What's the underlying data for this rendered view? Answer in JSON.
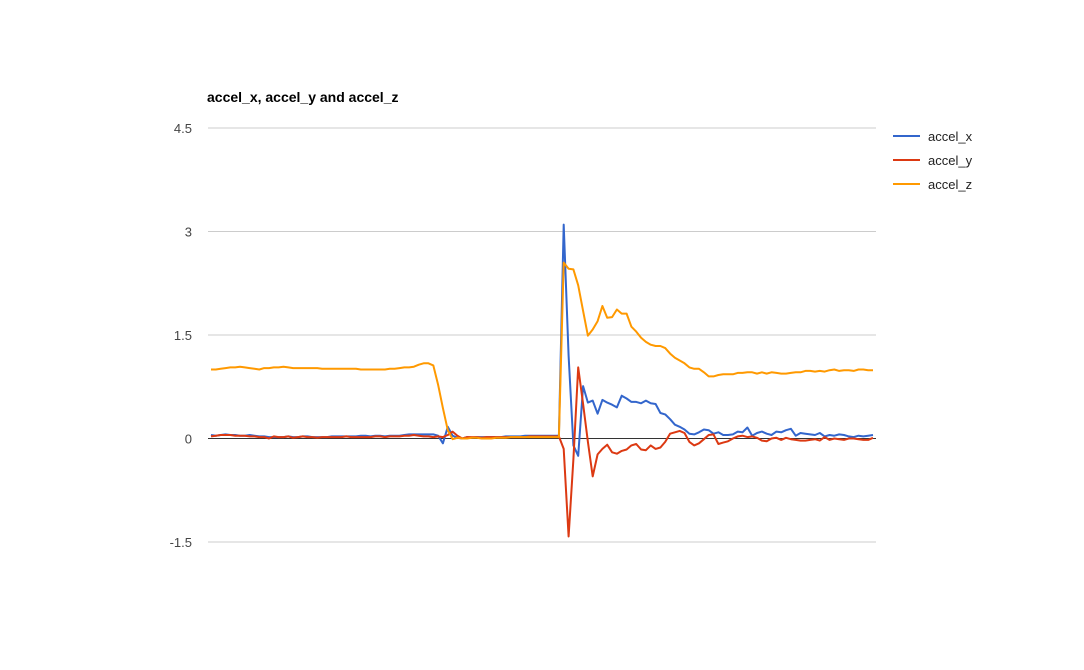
{
  "chart_data": {
    "type": "line",
    "title": "accel_x, accel_y and accel_z",
    "xlabel": "",
    "ylabel": "",
    "ylim": [
      -1.5,
      4.5
    ],
    "y_ticks": [
      "4.5",
      "3",
      "1.5",
      "0",
      "-1.5"
    ],
    "y_tick_values": [
      4.5,
      3,
      1.5,
      0,
      -1.5
    ],
    "grid": true,
    "legend_position": "right",
    "x": [
      0,
      1,
      2,
      3,
      4,
      5,
      6,
      7,
      8,
      9,
      10,
      11,
      12,
      13,
      14,
      15,
      16,
      17,
      18,
      19,
      20,
      21,
      22,
      23,
      24,
      25,
      26,
      27,
      28,
      29,
      30,
      31,
      32,
      33,
      34,
      35,
      36,
      37,
      38,
      39,
      40,
      41,
      42,
      43,
      44,
      45,
      46,
      47,
      48,
      49,
      50,
      51,
      52,
      53,
      54,
      55,
      56,
      57,
      58,
      59,
      60,
      61,
      62,
      63,
      64,
      65,
      66,
      67,
      68,
      69,
      70,
      71,
      72,
      73,
      74,
      75,
      76,
      77,
      78,
      79,
      80,
      81,
      82,
      83,
      84,
      85,
      86,
      87,
      88,
      89,
      90,
      91,
      92,
      93,
      94,
      95,
      96,
      97,
      98,
      99,
      100,
      101,
      102,
      103,
      104,
      105,
      106,
      107,
      108,
      109,
      110,
      111,
      112,
      113,
      114,
      115,
      116,
      117,
      118,
      119,
      120,
      121,
      122,
      123,
      124,
      125,
      126,
      127,
      128,
      129,
      130,
      131,
      132,
      133,
      134,
      135,
      136,
      137
    ],
    "series": [
      {
        "name": "accel_x",
        "color": "#3366cc",
        "values": [
          0.05,
          0.04,
          0.05,
          0.06,
          0.05,
          0.05,
          0.04,
          0.04,
          0.05,
          0.04,
          0.03,
          0.03,
          0.02,
          0.02,
          0.02,
          0.02,
          0.03,
          0.02,
          0.02,
          0.03,
          0.03,
          0.02,
          0.02,
          0.02,
          0.02,
          0.03,
          0.03,
          0.03,
          0.03,
          0.03,
          0.03,
          0.04,
          0.04,
          0.03,
          0.04,
          0.04,
          0.03,
          0.04,
          0.04,
          0.04,
          0.05,
          0.06,
          0.06,
          0.06,
          0.06,
          0.06,
          0.06,
          0.04,
          -0.07,
          0.17,
          0.04,
          0.01,
          0.0,
          0.02,
          0.01,
          0.02,
          0.02,
          0.02,
          0.02,
          0.02,
          0.02,
          0.03,
          0.03,
          0.03,
          0.03,
          0.04,
          0.04,
          0.04,
          0.04,
          0.04,
          0.04,
          0.04,
          0.04,
          3.1,
          1.2,
          -0.1,
          -0.25,
          0.76,
          0.52,
          0.55,
          0.36,
          0.56,
          0.52,
          0.49,
          0.45,
          0.62,
          0.58,
          0.53,
          0.53,
          0.51,
          0.55,
          0.51,
          0.5,
          0.37,
          0.35,
          0.28,
          0.2,
          0.17,
          0.13,
          0.07,
          0.06,
          0.09,
          0.13,
          0.12,
          0.07,
          0.09,
          0.05,
          0.05,
          0.06,
          0.1,
          0.09,
          0.16,
          0.04,
          0.08,
          0.1,
          0.07,
          0.05,
          0.1,
          0.09,
          0.12,
          0.14,
          0.04,
          0.08,
          0.07,
          0.06,
          0.05,
          0.08,
          0.03,
          0.05,
          0.04,
          0.06,
          0.05,
          0.03,
          0.02,
          0.04,
          0.03,
          0.04,
          0.05
        ]
      },
      {
        "name": "accel_y",
        "color": "#dc3912",
        "values": [
          0.03,
          0.04,
          0.05,
          0.05,
          0.05,
          0.04,
          0.04,
          0.04,
          0.03,
          0.03,
          0.02,
          0.02,
          0.0,
          0.03,
          0.02,
          0.02,
          0.03,
          0.01,
          0.02,
          0.03,
          0.02,
          0.02,
          0.01,
          0.02,
          0.02,
          0.02,
          0.02,
          0.02,
          0.03,
          0.02,
          0.02,
          0.02,
          0.02,
          0.02,
          0.03,
          0.03,
          0.02,
          0.03,
          0.03,
          0.03,
          0.04,
          0.04,
          0.05,
          0.04,
          0.03,
          0.03,
          0.02,
          0.03,
          0.02,
          0.05,
          0.1,
          0.04,
          0.0,
          0.02,
          0.02,
          0.02,
          0.01,
          0.02,
          0.02,
          0.02,
          0.02,
          0.02,
          0.02,
          0.02,
          0.02,
          0.02,
          0.03,
          0.03,
          0.03,
          0.03,
          0.03,
          0.03,
          0.03,
          -0.15,
          -1.42,
          -0.3,
          1.03,
          0.5,
          -0.05,
          -0.55,
          -0.23,
          -0.15,
          -0.09,
          -0.2,
          -0.22,
          -0.18,
          -0.16,
          -0.1,
          -0.08,
          -0.16,
          -0.17,
          -0.1,
          -0.15,
          -0.13,
          -0.05,
          0.07,
          0.09,
          0.11,
          0.08,
          -0.05,
          -0.1,
          -0.07,
          -0.01,
          0.05,
          0.06,
          -0.08,
          -0.06,
          -0.04,
          0.0,
          0.03,
          0.04,
          0.02,
          0.03,
          0.01,
          -0.03,
          -0.04,
          0.0,
          0.01,
          -0.02,
          0.01,
          -0.01,
          -0.02,
          -0.03,
          -0.03,
          -0.02,
          -0.01,
          -0.03,
          0.02,
          -0.02,
          0.0,
          -0.01,
          -0.02,
          0.0,
          0.0,
          -0.01,
          -0.02,
          -0.02,
          0.01
        ]
      },
      {
        "name": "accel_z",
        "color": "#ff9900",
        "values": [
          1.0,
          1.0,
          1.01,
          1.02,
          1.03,
          1.03,
          1.04,
          1.03,
          1.02,
          1.01,
          1.0,
          1.02,
          1.02,
          1.03,
          1.03,
          1.04,
          1.03,
          1.02,
          1.02,
          1.02,
          1.02,
          1.02,
          1.02,
          1.01,
          1.01,
          1.01,
          1.01,
          1.01,
          1.01,
          1.01,
          1.01,
          1.0,
          1.0,
          1.0,
          1.0,
          1.0,
          1.0,
          1.01,
          1.01,
          1.02,
          1.03,
          1.03,
          1.04,
          1.07,
          1.09,
          1.09,
          1.06,
          0.78,
          0.44,
          0.12,
          -0.01,
          0.01,
          0.0,
          0.0,
          0.01,
          0.01,
          0.0,
          0.0,
          0.0,
          0.01,
          0.01,
          0.01,
          0.02,
          0.02,
          0.02,
          0.02,
          0.02,
          0.02,
          0.02,
          0.02,
          0.02,
          0.02,
          0.02,
          2.55,
          2.46,
          2.45,
          2.22,
          1.85,
          1.49,
          1.58,
          1.7,
          1.92,
          1.75,
          1.76,
          1.87,
          1.81,
          1.81,
          1.62,
          1.55,
          1.46,
          1.4,
          1.36,
          1.34,
          1.34,
          1.31,
          1.23,
          1.17,
          1.13,
          1.09,
          1.03,
          1.01,
          1.01,
          0.96,
          0.9,
          0.9,
          0.92,
          0.93,
          0.93,
          0.93,
          0.95,
          0.95,
          0.96,
          0.96,
          0.94,
          0.96,
          0.94,
          0.96,
          0.95,
          0.94,
          0.94,
          0.95,
          0.96,
          0.96,
          0.98,
          0.98,
          0.97,
          0.98,
          0.97,
          0.99,
          1.0,
          0.98,
          0.99,
          0.99,
          0.98,
          1.0,
          1.0,
          0.99,
          0.99
        ]
      }
    ]
  }
}
